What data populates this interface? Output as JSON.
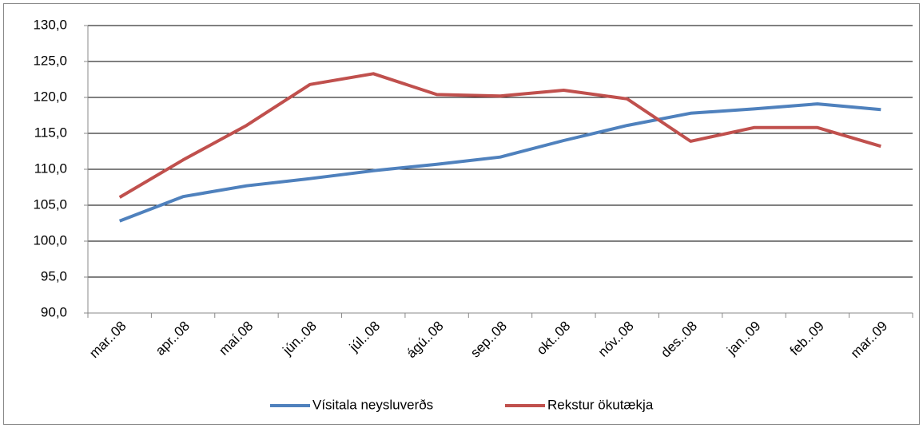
{
  "chart_data": {
    "type": "line",
    "categories": [
      "mar..08",
      "apr..08",
      "maí.08",
      "jún..08",
      "júl..08",
      "ágú..08",
      "sep..08",
      "okt..08",
      "nóv..08",
      "des..08",
      "jan..09",
      "feb..09",
      "mar..09"
    ],
    "series": [
      {
        "name": "Vísitala neysluverðs",
        "color": "#4f81bd",
        "values": [
          102.8,
          106.2,
          107.7,
          108.7,
          109.8,
          110.7,
          111.7,
          114.0,
          116.1,
          117.8,
          118.4,
          119.1,
          118.3
        ]
      },
      {
        "name": "Rekstur ökutækja",
        "color": "#c0504d",
        "values": [
          106.1,
          111.3,
          116.1,
          121.8,
          123.3,
          120.4,
          120.2,
          121.0,
          119.8,
          113.9,
          115.8,
          115.8,
          113.2
        ]
      }
    ],
    "ylim": [
      90,
      130
    ],
    "yticks": [
      {
        "value": 90,
        "label": "90,0"
      },
      {
        "value": 95,
        "label": "95,0"
      },
      {
        "value": 100,
        "label": "100,0"
      },
      {
        "value": 105,
        "label": "105,0"
      },
      {
        "value": 110,
        "label": "110,0"
      },
      {
        "value": 115,
        "label": "115,0"
      },
      {
        "value": 120,
        "label": "120,0"
      },
      {
        "value": 125,
        "label": "125,0"
      },
      {
        "value": 130,
        "label": "130,0"
      }
    ],
    "grid": true,
    "legend": "bottom"
  }
}
